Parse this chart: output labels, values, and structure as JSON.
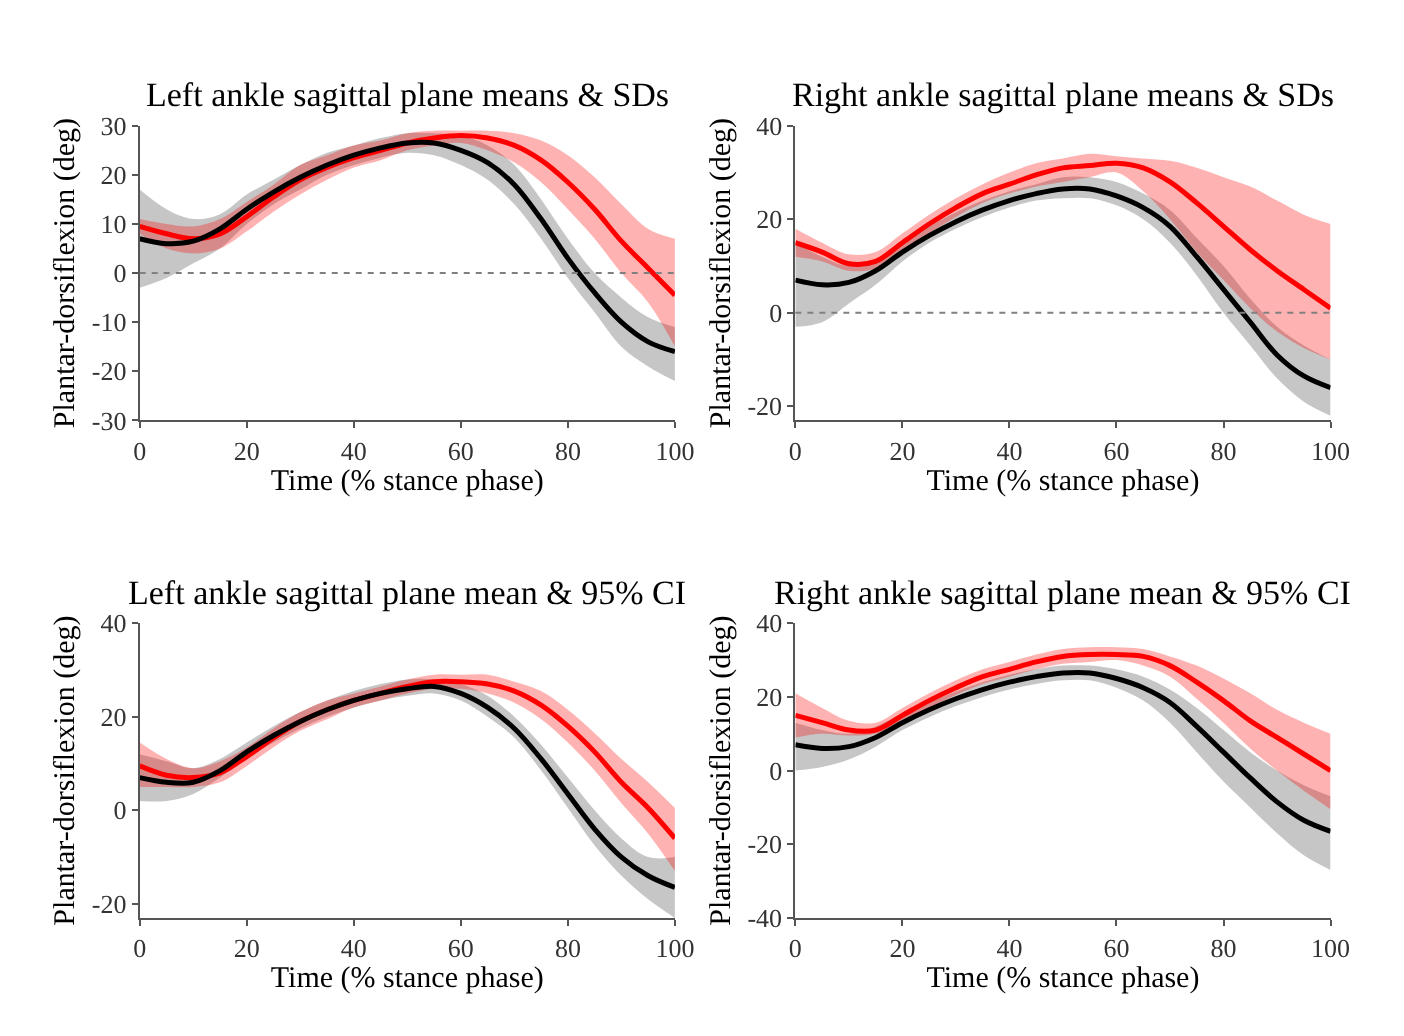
{
  "chart_data": [
    {
      "type": "line",
      "title": "Left ankle sagittal plane means & SDs",
      "xlabel": "Time (% stance phase)",
      "ylabel": "Plantar-dorsiflexion (deg)",
      "x": [
        0,
        5,
        10,
        15,
        20,
        25,
        30,
        35,
        40,
        45,
        50,
        55,
        60,
        65,
        70,
        75,
        80,
        85,
        90,
        95,
        100
      ],
      "xlim": [
        0,
        100
      ],
      "xticks": [
        0,
        20,
        40,
        60,
        80,
        100
      ],
      "ylim": [
        -30,
        30
      ],
      "yticks": [
        -30,
        -20,
        -10,
        0,
        10,
        20,
        30
      ],
      "ref_lines": [
        {
          "axis": "y",
          "value": 0,
          "color": "#808080",
          "line_style": "dotted"
        }
      ],
      "series": [
        {
          "color": "#000000",
          "values": [
            7,
            6,
            6.5,
            9,
            13,
            16.5,
            19.5,
            22,
            24,
            25.5,
            26.5,
            26.5,
            25,
            22.5,
            18,
            11,
            3,
            -4,
            -10,
            -14,
            -16
          ],
          "lower": [
            -3,
            -1,
            2,
            5,
            10,
            14,
            17,
            20,
            22,
            23.5,
            24.5,
            24,
            22,
            19,
            14,
            7,
            -1,
            -8,
            -15,
            -19,
            -22
          ],
          "upper": [
            17,
            13,
            11,
            12,
            16,
            19,
            22,
            24.5,
            26,
            27.5,
            28.5,
            28.5,
            28,
            26,
            22,
            15,
            7,
            0,
            -5,
            -9,
            -11
          ]
        },
        {
          "color": "#ff0000",
          "values": [
            9.5,
            8,
            7,
            8,
            11.5,
            15.5,
            19,
            21.5,
            23.5,
            25,
            26.5,
            27.5,
            28,
            27.5,
            26,
            23,
            18.5,
            13,
            6.5,
            1,
            -4.5
          ],
          "lower": [
            8,
            5,
            4,
            5,
            8.5,
            12.5,
            16,
            19,
            21.5,
            23,
            25,
            26,
            26.5,
            25,
            22.5,
            18.5,
            13,
            7,
            0,
            -6,
            -15
          ],
          "upper": [
            11,
            10,
            9.5,
            11,
            14.5,
            18,
            22,
            24,
            26,
            27,
            28.5,
            29,
            29,
            29,
            28.5,
            27,
            24,
            19.5,
            14,
            9,
            7
          ]
        }
      ]
    },
    {
      "type": "line",
      "title": "Right ankle sagittal plane means & SDs",
      "xlabel": "Time (% stance phase)",
      "ylabel": "Plantar-dorsiflexion (deg)",
      "x": [
        0,
        5,
        10,
        15,
        20,
        25,
        30,
        35,
        40,
        45,
        50,
        55,
        60,
        65,
        70,
        75,
        80,
        85,
        90,
        95,
        100
      ],
      "xlim": [
        0,
        100
      ],
      "xticks": [
        0,
        20,
        40,
        60,
        80,
        100
      ],
      "ylim": [
        -23,
        40
      ],
      "yticks": [
        -20,
        0,
        20,
        40
      ],
      "ref_lines": [
        {
          "axis": "y",
          "value": 0,
          "color": "#808080",
          "line_style": "dotted"
        }
      ],
      "series": [
        {
          "color": "#000000",
          "values": [
            7,
            6,
            6.5,
            9,
            13,
            16.5,
            19.5,
            22,
            24,
            25.5,
            26.5,
            26.5,
            25,
            22.5,
            18.5,
            12,
            5,
            -2,
            -9,
            -13.5,
            -16
          ],
          "lower": [
            -3,
            -2,
            2,
            6,
            11,
            15,
            18,
            20.5,
            22.5,
            24,
            24.5,
            24.5,
            23,
            20,
            15,
            8,
            0,
            -7,
            -14,
            -19,
            -22
          ],
          "upper": [
            15,
            12,
            10,
            11.5,
            15,
            18.5,
            21.5,
            24,
            26,
            27.5,
            29,
            29,
            28,
            25.5,
            22,
            16,
            10,
            3,
            -3,
            -7,
            -10
          ]
        },
        {
          "color": "#ff0000",
          "values": [
            15,
            13,
            10.5,
            11,
            15,
            19,
            22.5,
            25.5,
            27.5,
            29.5,
            31,
            31.5,
            32,
            31,
            28,
            23.5,
            18.5,
            13.5,
            9,
            5,
            1
          ],
          "lower": [
            12,
            11,
            9,
            9.5,
            13,
            17,
            20.5,
            23.5,
            25.5,
            27,
            28,
            29,
            30,
            26,
            20,
            13,
            7,
            1,
            -4,
            -7.5,
            -10
          ],
          "upper": [
            18,
            15,
            12.5,
            13,
            17,
            21,
            24.5,
            27.5,
            30,
            32,
            33,
            34,
            33.5,
            33,
            32.5,
            31,
            29,
            27,
            24,
            21,
            19
          ]
        }
      ]
    },
    {
      "type": "line",
      "title": "Left ankle sagittal plane mean & 95% CI",
      "xlabel": "Time (% stance phase)",
      "ylabel": "Plantar-dorsiflexion (deg)",
      "x": [
        0,
        5,
        10,
        15,
        20,
        25,
        30,
        35,
        40,
        45,
        50,
        55,
        60,
        65,
        70,
        75,
        80,
        85,
        90,
        95,
        100
      ],
      "xlim": [
        0,
        100
      ],
      "xticks": [
        0,
        20,
        40,
        60,
        80,
        100
      ],
      "ylim": [
        -23,
        40
      ],
      "yticks": [
        -20,
        0,
        20,
        40
      ],
      "series": [
        {
          "color": "#000000",
          "values": [
            7,
            6,
            6,
            8.5,
            12.5,
            16,
            19,
            21.5,
            23.5,
            25,
            26,
            26.5,
            25,
            22,
            17.5,
            11,
            3.5,
            -4,
            -10,
            -14,
            -16.5
          ],
          "lower": [
            2,
            2,
            3.5,
            7,
            11,
            14.5,
            17.5,
            20,
            22,
            23.5,
            24.5,
            25,
            23.5,
            20,
            15.5,
            8.5,
            0.5,
            -7.5,
            -14,
            -19,
            -23
          ],
          "upper": [
            12,
            10.5,
            9,
            11,
            14.5,
            18,
            21,
            23.5,
            25.5,
            27,
            28,
            28,
            27,
            24.5,
            20,
            14,
            7,
            0,
            -6,
            -10,
            -10
          ]
        },
        {
          "color": "#ff0000",
          "values": [
            9.5,
            7.5,
            7,
            8,
            11.5,
            15.5,
            19,
            21.5,
            23.5,
            25,
            26.5,
            27.5,
            27.5,
            27,
            25.5,
            22.5,
            18,
            12.5,
            6,
            0.5,
            -6
          ],
          "lower": [
            5,
            5,
            5,
            6,
            9.5,
            13.5,
            17,
            19.5,
            22,
            23.5,
            25,
            26,
            26,
            25,
            23,
            19.5,
            14.5,
            8.5,
            1.5,
            -5,
            -13
          ],
          "upper": [
            14.5,
            11,
            9,
            10.5,
            13.5,
            17.5,
            21,
            23.5,
            25,
            26.5,
            28,
            29,
            29,
            29,
            27.5,
            25.5,
            21.5,
            16.5,
            11,
            6,
            0.5
          ]
        }
      ]
    },
    {
      "type": "line",
      "title": "Right ankle sagittal plane mean & 95% CI",
      "xlabel": "Time (% stance phase)",
      "ylabel": "Plantar-dorsiflexion (deg)",
      "x": [
        0,
        5,
        10,
        15,
        20,
        25,
        30,
        35,
        40,
        45,
        50,
        55,
        60,
        65,
        70,
        75,
        80,
        85,
        90,
        95,
        100
      ],
      "xlim": [
        0,
        100
      ],
      "xticks": [
        0,
        20,
        40,
        60,
        80,
        100
      ],
      "ylim": [
        -40,
        40
      ],
      "yticks": [
        -40,
        -20,
        0,
        20,
        40
      ],
      "series": [
        {
          "color": "#000000",
          "values": [
            7,
            6,
            6.5,
            9,
            13,
            16.5,
            19.5,
            22,
            24,
            25.5,
            26.5,
            26.5,
            25,
            22.5,
            18.5,
            12,
            5,
            -2,
            -8.5,
            -13.5,
            -16.5
          ],
          "lower": [
            0,
            1,
            3,
            6.5,
            11,
            14.5,
            17.5,
            20,
            22,
            23.5,
            24.5,
            24.5,
            22.5,
            19,
            13,
            5,
            -3,
            -10,
            -17,
            -23,
            -27
          ],
          "upper": [
            13,
            11,
            10,
            12,
            15.5,
            18.5,
            21.5,
            24,
            26,
            27.5,
            28.5,
            28.5,
            27.5,
            25.5,
            22,
            17,
            11,
            5,
            0,
            -4,
            -7
          ]
        },
        {
          "color": "#ff0000",
          "values": [
            15,
            13,
            11,
            11,
            15,
            19,
            22.5,
            25.5,
            27.5,
            29.5,
            31,
            31.5,
            31.5,
            31,
            28.5,
            24,
            19,
            13.5,
            9,
            4.5,
            0
          ],
          "lower": [
            9,
            10,
            9.5,
            10,
            13,
            17,
            20.5,
            23.5,
            25.5,
            27.5,
            29,
            29.5,
            30,
            28.5,
            25.5,
            19.5,
            13,
            6,
            0,
            -5.5,
            -10.5
          ],
          "upper": [
            21,
            17,
            13.5,
            13,
            17,
            21,
            24.5,
            27.5,
            29.5,
            31.5,
            33,
            33.5,
            33.5,
            33,
            31,
            28.5,
            25,
            21,
            16.5,
            13,
            10
          ]
        }
      ]
    }
  ]
}
